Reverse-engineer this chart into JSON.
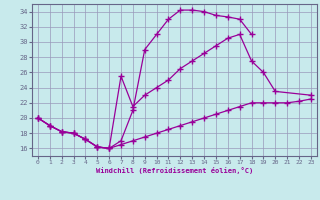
{
  "title": "Windchill (Refroidissement éolien,°C)",
  "line_color": "#990099",
  "bg_color": "#c8eaec",
  "grid_color": "#9999bb",
  "xlim": [
    -0.5,
    23.5
  ],
  "ylim": [
    15.0,
    35.0
  ],
  "xticks": [
    0,
    1,
    2,
    3,
    4,
    5,
    6,
    7,
    8,
    9,
    10,
    11,
    12,
    13,
    14,
    15,
    16,
    17,
    18,
    19,
    20,
    21,
    22,
    23
  ],
  "yticks": [
    16,
    18,
    20,
    22,
    24,
    26,
    28,
    30,
    32,
    34
  ],
  "line1_x": [
    0,
    1,
    2,
    3,
    4,
    5,
    6,
    7,
    8,
    9,
    10,
    11,
    12,
    13,
    14,
    15,
    16,
    17,
    18
  ],
  "line1_y": [
    20,
    19,
    18.2,
    18,
    17.2,
    16.2,
    16,
    17,
    21,
    29,
    31,
    33,
    34.2,
    34.2,
    34,
    33.5,
    33.3,
    33,
    31
  ],
  "line2_x": [
    0,
    1,
    2,
    3,
    4,
    5,
    6,
    7,
    8,
    9,
    10,
    11,
    12,
    13,
    14,
    15,
    16,
    17,
    18,
    19,
    20,
    23
  ],
  "line2_y": [
    20,
    19,
    18.2,
    18,
    17.2,
    16.2,
    16,
    25.5,
    21.5,
    23,
    24,
    25,
    26.5,
    27.5,
    28.5,
    29.5,
    30.5,
    31,
    27.5,
    26,
    23.5,
    23
  ],
  "line3_x": [
    0,
    1,
    2,
    3,
    4,
    5,
    6,
    7,
    8,
    9,
    10,
    11,
    12,
    13,
    14,
    15,
    16,
    17,
    18,
    19,
    20,
    21,
    22,
    23
  ],
  "line3_y": [
    20,
    19,
    18.2,
    18,
    17.2,
    16.2,
    16,
    16.5,
    17,
    17.5,
    18,
    18.5,
    19,
    19.5,
    20,
    20.5,
    21,
    21.5,
    22,
    22,
    22,
    22,
    22.2,
    22.5
  ]
}
